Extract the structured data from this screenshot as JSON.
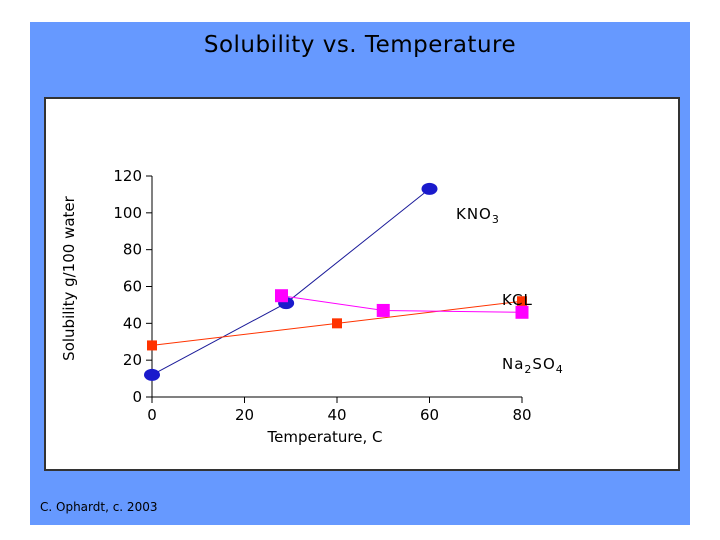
{
  "slide": {
    "title": "Solubility vs. Temperature",
    "footer": "C. Ophardt, c. 2003",
    "colors": {
      "background": "#6699ff",
      "panel": "#ffffff"
    }
  },
  "chart_data": {
    "type": "line",
    "title": "Solubility vs. Temperature",
    "xlabel": "Temperature, C",
    "ylabel": "Solubility g/100 water",
    "xlim": [
      0,
      80
    ],
    "ylim": [
      0,
      120
    ],
    "xticks": [
      0,
      20,
      40,
      60,
      80
    ],
    "yticks": [
      0,
      20,
      40,
      60,
      80,
      100,
      120
    ],
    "grid": false,
    "series": [
      {
        "name": "KNO3",
        "label_main": "KNO",
        "label_sub": "3",
        "label_tail": "",
        "color": "#1a1acc",
        "line_color": "#1a1a99",
        "marker": "circle",
        "points": [
          [
            0,
            12
          ],
          [
            29,
            51
          ],
          [
            60,
            113
          ]
        ]
      },
      {
        "name": "KCL",
        "label_main": "KCL",
        "label_sub": "",
        "label_tail": "",
        "color": "#ff3300",
        "line_color": "#ff3300",
        "marker": "square",
        "points": [
          [
            0,
            28
          ],
          [
            40,
            40
          ],
          [
            80,
            52
          ]
        ]
      },
      {
        "name": "Na2SO4",
        "label_main": "Na",
        "label_sub": "2",
        "label_tail": "SO4",
        "color": "#ff00ff",
        "line_color": "#ff00ff",
        "marker": "square",
        "points": [
          [
            28,
            55
          ],
          [
            50,
            47
          ],
          [
            80,
            46
          ]
        ]
      }
    ]
  }
}
